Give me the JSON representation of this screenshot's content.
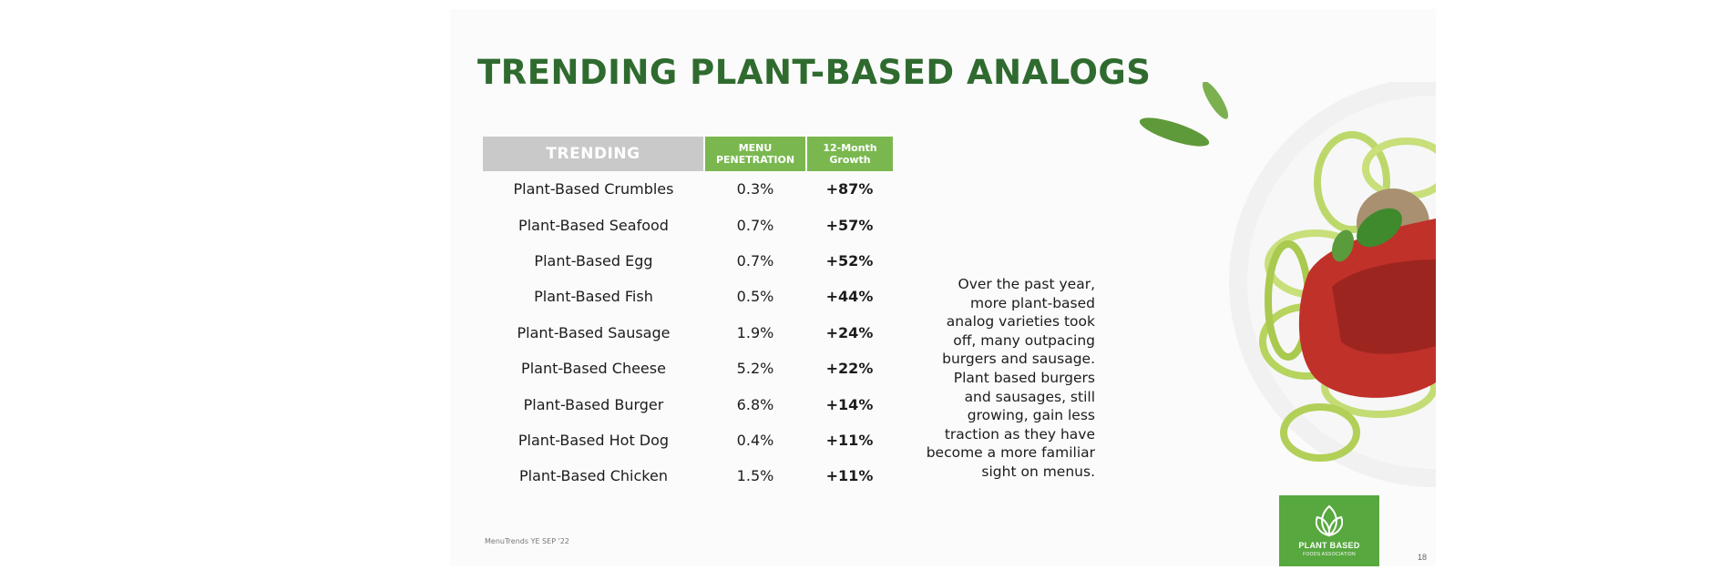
{
  "title": "TRENDING PLANT-BASED ANALOGS",
  "table": {
    "headers": {
      "trending": "TRENDING",
      "penetration": [
        "MENU",
        "PENETRATION"
      ],
      "growth": [
        "12-Month",
        "Growth"
      ]
    },
    "rows": [
      {
        "name": "Plant-Based Crumbles",
        "penetration": "0.3%",
        "growth": "+87%"
      },
      {
        "name": "Plant-Based Seafood",
        "penetration": "0.7%",
        "growth": "+57%"
      },
      {
        "name": "Plant-Based Egg",
        "penetration": "0.7%",
        "growth": "+52%"
      },
      {
        "name": "Plant-Based Fish",
        "penetration": "0.5%",
        "growth": "+44%"
      },
      {
        "name": "Plant-Based Sausage",
        "penetration": "1.9%",
        "growth": "+24%"
      },
      {
        "name": "Plant-Based Cheese",
        "penetration": "5.2%",
        "growth": "+22%"
      },
      {
        "name": "Plant-Based Burger",
        "penetration": "6.8%",
        "growth": "+14%"
      },
      {
        "name": "Plant-Based Hot Dog",
        "penetration": "0.4%",
        "growth": "+11%"
      },
      {
        "name": "Plant-Based Chicken",
        "penetration": "1.5%",
        "growth": "+11%"
      }
    ]
  },
  "paragraph_lines": [
    "Over the past year,",
    "more plant-based",
    "analog varieties took",
    "off, many outpacing",
    "burgers and sausage.",
    "Plant based burgers",
    "and sausages, still",
    "growing, gain less",
    "traction as they have",
    "become a more familiar",
    "sight on menus."
  ],
  "source": "MenuTrends YE SEP '22",
  "page_number": "18",
  "logo": {
    "line1": "PLANT BASED",
    "line2": "FOODS ASSOCIATION",
    "icon": "leaf-cluster-icon"
  },
  "colors": {
    "title": "#2f6b2f",
    "header_gray": "#c9c9c9",
    "header_green": "#7ab84f",
    "logo_green": "#57a83f"
  }
}
